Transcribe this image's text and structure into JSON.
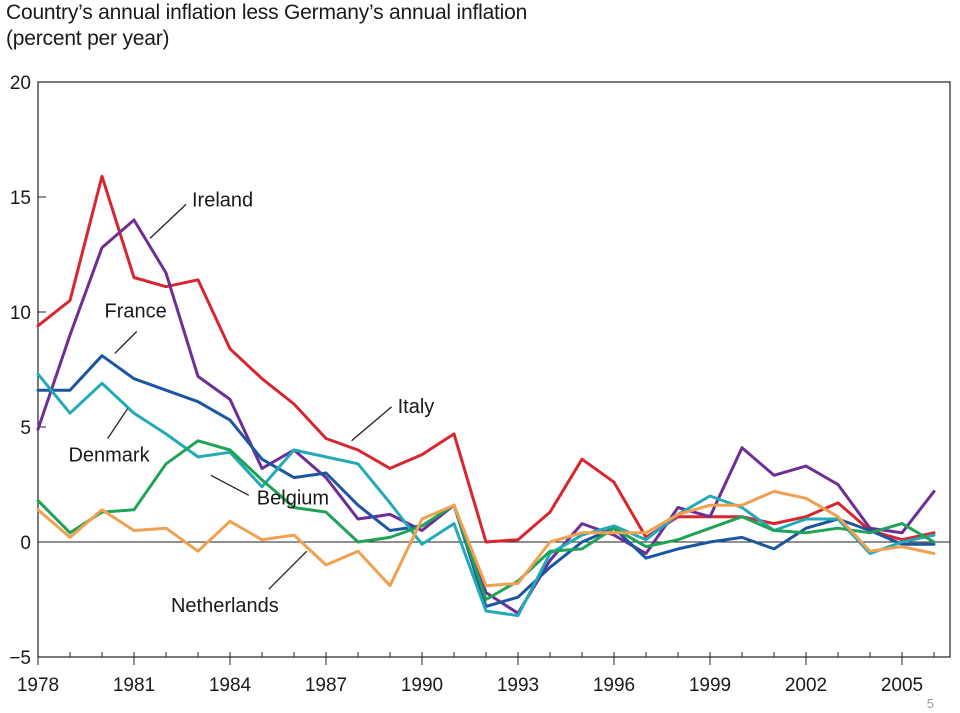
{
  "title_lines": [
    "Country’s annual inflation less Germany’s annual inflation",
    "(percent per year)"
  ],
  "page_number": "5",
  "chart_data": {
    "type": "line",
    "title": "Country’s annual inflation less Germany’s annual inflation",
    "subtitle": "(percent per year)",
    "xlabel": "",
    "ylabel": "",
    "x": [
      1978,
      1979,
      1980,
      1981,
      1982,
      1983,
      1984,
      1985,
      1986,
      1987,
      1988,
      1989,
      1990,
      1991,
      1992,
      1993,
      1994,
      1995,
      1996,
      1997,
      1998,
      1999,
      2000,
      2001,
      2002,
      2003,
      2004,
      2005,
      2006
    ],
    "xlim": [
      1978,
      2006.5
    ],
    "ylim": [
      -5,
      20
    ],
    "xticks": [
      "1978",
      "1981",
      "1984",
      "1987",
      "1990",
      "1993",
      "1996",
      "1999",
      "2002",
      "2005"
    ],
    "yticks": [
      "20",
      "15",
      "10",
      "5",
      "0",
      "−5"
    ],
    "grid": false,
    "zero_line": true,
    "series": [
      {
        "name": "Italy",
        "color": "#d7262e",
        "values": [
          9.4,
          10.5,
          15.9,
          11.5,
          11.1,
          11.4,
          8.4,
          7.1,
          6.0,
          4.5,
          4.0,
          3.2,
          3.8,
          4.7,
          0.0,
          0.1,
          1.3,
          3.6,
          2.6,
          0.2,
          1.1,
          1.1,
          1.1,
          0.8,
          1.1,
          1.7,
          0.5,
          0.1,
          0.4
        ]
      },
      {
        "name": "Ireland",
        "color": "#6d2e96",
        "values": [
          4.9,
          9.0,
          12.8,
          14.0,
          11.7,
          7.2,
          6.2,
          3.2,
          4.0,
          2.8,
          1.0,
          1.2,
          0.5,
          1.6,
          -2.2,
          -3.1,
          -0.8,
          0.8,
          0.3,
          -0.5,
          1.5,
          1.1,
          4.1,
          2.9,
          3.3,
          2.5,
          0.6,
          0.4,
          2.2
        ]
      },
      {
        "name": "France",
        "color": "#1c56a0",
        "values": [
          6.6,
          6.6,
          8.1,
          7.1,
          6.6,
          6.1,
          5.3,
          3.6,
          2.8,
          3.0,
          1.6,
          0.5,
          0.7,
          1.6,
          -2.8,
          -2.4,
          -1.1,
          0.0,
          0.6,
          -0.7,
          -0.3,
          0.0,
          0.2,
          -0.3,
          0.6,
          1.0,
          0.5,
          -0.1,
          -0.1
        ]
      },
      {
        "name": "Denmark",
        "color": "#22aab8",
        "values": [
          7.3,
          5.6,
          6.9,
          5.6,
          4.7,
          3.7,
          3.9,
          2.4,
          4.0,
          3.7,
          3.4,
          1.7,
          -0.1,
          0.8,
          -3.0,
          -3.2,
          -0.5,
          0.3,
          0.7,
          0.1,
          1.2,
          2.0,
          1.5,
          0.5,
          1.0,
          1.0,
          -0.5,
          0.0,
          0.3
        ]
      },
      {
        "name": "Belgium",
        "color": "#1fa356",
        "values": [
          1.8,
          0.4,
          1.3,
          1.4,
          3.4,
          4.4,
          4.0,
          2.7,
          1.5,
          1.3,
          0.0,
          0.2,
          0.7,
          1.6,
          -2.5,
          -1.7,
          -0.4,
          -0.3,
          0.6,
          -0.2,
          0.1,
          0.6,
          1.1,
          0.5,
          0.4,
          0.6,
          0.4,
          0.8,
          0.0
        ]
      },
      {
        "name": "Netherlands",
        "color": "#f0a050",
        "values": [
          1.4,
          0.2,
          1.4,
          0.5,
          0.6,
          -0.4,
          0.9,
          0.1,
          0.3,
          -1.0,
          -0.4,
          -1.9,
          1.0,
          1.6,
          -1.9,
          -1.8,
          0.0,
          0.4,
          0.4,
          0.4,
          1.2,
          1.6,
          1.6,
          2.2,
          1.9,
          1.1,
          -0.4,
          -0.2,
          -0.5
        ]
      }
    ],
    "annotations": [
      {
        "text": "Ireland",
        "series": "Ireland",
        "pos": "upper-right",
        "from": [
          1981.5,
          13.2
        ]
      },
      {
        "text": "France",
        "series": "France",
        "pos": "left",
        "from": [
          1980.4,
          8.2
        ]
      },
      {
        "text": "Italy",
        "series": "Italy",
        "pos": "right",
        "from": [
          1987.8,
          4.4
        ]
      },
      {
        "text": "Denmark",
        "series": "Denmark",
        "pos": "left",
        "from": [
          1980.8,
          5.8
        ]
      },
      {
        "text": "Belgium",
        "series": "Belgium",
        "pos": "right",
        "from": [
          1983.4,
          2.9
        ]
      },
      {
        "text": "Netherlands",
        "series": "Netherlands",
        "pos": "below",
        "from": [
          1986.4,
          -0.4
        ]
      }
    ]
  }
}
